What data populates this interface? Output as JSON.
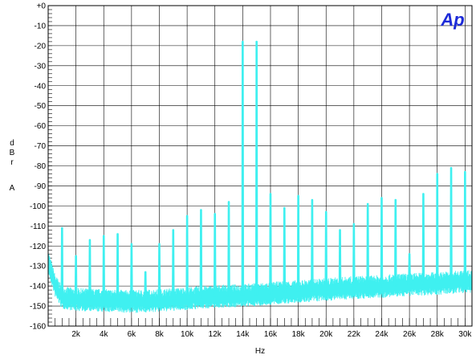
{
  "chart_data": {
    "type": "line",
    "title": "",
    "xlabel": "Hz",
    "ylabel_letters": [
      "d",
      "B",
      "r",
      "A"
    ],
    "logo": "Ap",
    "xlim": [
      0,
      30500
    ],
    "ylim": [
      -160,
      0
    ],
    "grid": true,
    "line_color": "#3ff0f0",
    "x_ticks": [
      2000,
      4000,
      6000,
      8000,
      10000,
      12000,
      14000,
      16000,
      18000,
      20000,
      22000,
      24000,
      26000,
      28000,
      30000
    ],
    "x_tick_labels": [
      "2k",
      "4k",
      "6k",
      "8k",
      "10k",
      "12k",
      "14k",
      "16k",
      "18k",
      "20k",
      "22k",
      "24k",
      "26k",
      "28k",
      "30k"
    ],
    "y_ticks": [
      0,
      -10,
      -20,
      -30,
      -40,
      -50,
      -60,
      -70,
      -80,
      -90,
      -100,
      -110,
      -120,
      -130,
      -140,
      -150,
      -160
    ],
    "y_tick_labels": [
      "+0",
      "-10",
      "-20",
      "-30",
      "-40",
      "-50",
      "-60",
      "-70",
      "-80",
      "-90",
      "-100",
      "-110",
      "-120",
      "-130",
      "-140",
      "-150",
      "-160"
    ],
    "noise_floor": [
      {
        "x": 0,
        "y": -128
      },
      {
        "x": 200,
        "y": -133
      },
      {
        "x": 500,
        "y": -140
      },
      {
        "x": 1000,
        "y": -146
      },
      {
        "x": 2000,
        "y": -147
      },
      {
        "x": 4000,
        "y": -147.5
      },
      {
        "x": 6000,
        "y": -148
      },
      {
        "x": 8000,
        "y": -147.5
      },
      {
        "x": 10000,
        "y": -146.5
      },
      {
        "x": 12000,
        "y": -145.5
      },
      {
        "x": 14000,
        "y": -145
      },
      {
        "x": 16000,
        "y": -144
      },
      {
        "x": 18000,
        "y": -143
      },
      {
        "x": 20000,
        "y": -142
      },
      {
        "x": 22000,
        "y": -141
      },
      {
        "x": 24000,
        "y": -140.5
      },
      {
        "x": 26000,
        "y": -139.5
      },
      {
        "x": 28000,
        "y": -139
      },
      {
        "x": 30000,
        "y": -138
      },
      {
        "x": 30500,
        "y": -138
      }
    ],
    "peaks": [
      {
        "x": 1000,
        "y": -111
      },
      {
        "x": 2000,
        "y": -125
      },
      {
        "x": 3000,
        "y": -117
      },
      {
        "x": 4000,
        "y": -115
      },
      {
        "x": 5000,
        "y": -114
      },
      {
        "x": 6000,
        "y": -119
      },
      {
        "x": 7000,
        "y": -133
      },
      {
        "x": 8000,
        "y": -119
      },
      {
        "x": 9000,
        "y": -112
      },
      {
        "x": 10000,
        "y": -105
      },
      {
        "x": 11000,
        "y": -102
      },
      {
        "x": 12000,
        "y": -104
      },
      {
        "x": 13000,
        "y": -98
      },
      {
        "x": 14000,
        "y": -18
      },
      {
        "x": 15000,
        "y": -18
      },
      {
        "x": 16000,
        "y": -94
      },
      {
        "x": 17000,
        "y": -101
      },
      {
        "x": 18000,
        "y": -95
      },
      {
        "x": 19000,
        "y": -97
      },
      {
        "x": 20000,
        "y": -103
      },
      {
        "x": 21000,
        "y": -112
      },
      {
        "x": 22000,
        "y": -109
      },
      {
        "x": 23000,
        "y": -99
      },
      {
        "x": 24000,
        "y": -96
      },
      {
        "x": 25000,
        "y": -97
      },
      {
        "x": 26000,
        "y": -124
      },
      {
        "x": 27000,
        "y": -94
      },
      {
        "x": 28000,
        "y": -84
      },
      {
        "x": 29000,
        "y": -81
      },
      {
        "x": 30000,
        "y": -83
      }
    ]
  }
}
